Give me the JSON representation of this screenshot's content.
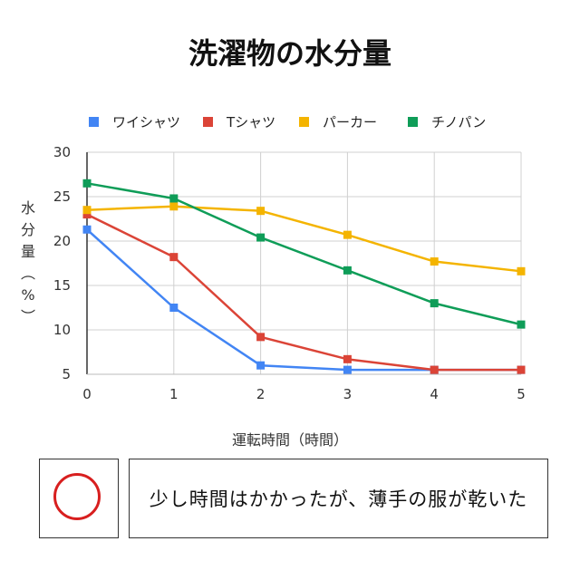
{
  "chart_data": {
    "type": "line",
    "title": "洗濯物の水分量",
    "xlabel": "運転時間（時間）",
    "ylabel": "水\n分\n量\n︵\n%\n︶",
    "x": [
      0,
      1,
      2,
      3,
      4,
      5
    ],
    "xlim": [
      0,
      5
    ],
    "ylim": [
      5,
      30
    ],
    "yticks": [
      5,
      10,
      15,
      20,
      25,
      30
    ],
    "grid": true,
    "legend_position": "top",
    "series": [
      {
        "name": "ワイシャツ",
        "color": "#4285f4",
        "values": [
          21.3,
          12.5,
          6.0,
          5.5,
          5.5,
          5.5
        ]
      },
      {
        "name": "Tシャツ",
        "color": "#db4437",
        "values": [
          23.0,
          18.2,
          9.2,
          6.7,
          5.5,
          5.5
        ]
      },
      {
        "name": "パーカー",
        "color": "#f4b400",
        "values": [
          23.5,
          23.9,
          23.4,
          20.7,
          17.7,
          16.6
        ]
      },
      {
        "name": "チノパン",
        "color": "#0f9d58",
        "values": [
          26.5,
          24.8,
          20.4,
          16.7,
          13.0,
          10.6
        ]
      }
    ]
  },
  "result": {
    "mark_icon": "red-circle-icon",
    "mark_color": "#d81f1f",
    "comment": "少し時間はかかったが、薄手の服が乾いた"
  }
}
